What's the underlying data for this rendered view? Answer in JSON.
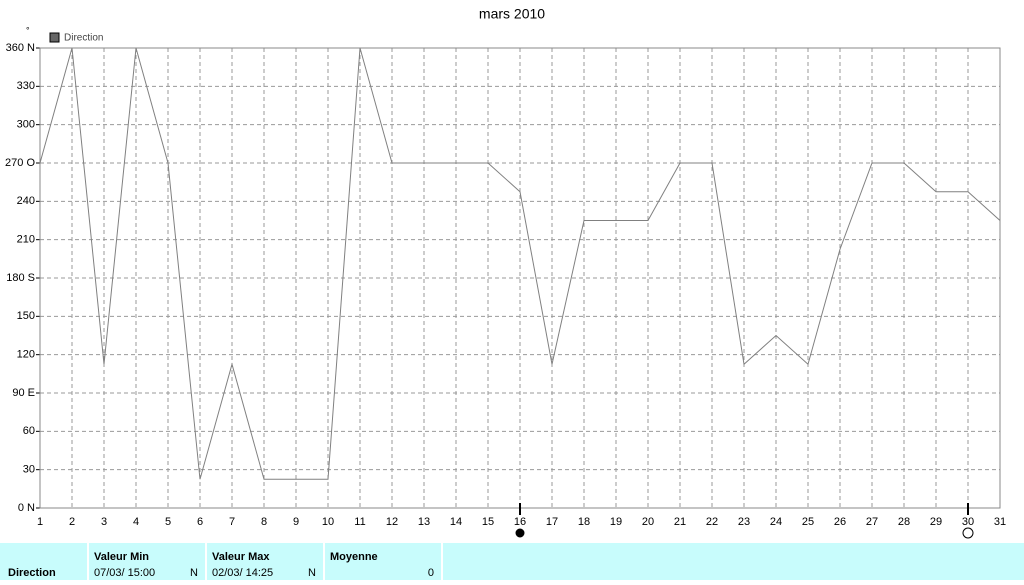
{
  "chart_data": {
    "type": "line",
    "title": "mars 2010",
    "y_unit": "°",
    "x": [
      1,
      2,
      3,
      4,
      5,
      6,
      7,
      8,
      9,
      10,
      11,
      12,
      13,
      14,
      15,
      16,
      17,
      18,
      19,
      20,
      21,
      22,
      23,
      24,
      25,
      26,
      27,
      28,
      29,
      30,
      31
    ],
    "series": [
      {
        "name": "Direction",
        "color": "#808080",
        "values": [
          270,
          360,
          112.5,
          360,
          270,
          22.5,
          112.5,
          22.5,
          22.5,
          22.5,
          360,
          270,
          270,
          270,
          270,
          247.5,
          112.5,
          225,
          225,
          225,
          270,
          270,
          112.5,
          135,
          112.5,
          202.5,
          270,
          270,
          247.5,
          247.5,
          225
        ]
      }
    ],
    "xlim": [
      1,
      31
    ],
    "xticks": [
      1,
      2,
      3,
      4,
      5,
      6,
      7,
      8,
      9,
      10,
      11,
      12,
      13,
      14,
      15,
      16,
      17,
      18,
      19,
      20,
      21,
      22,
      23,
      24,
      25,
      26,
      27,
      28,
      29,
      30,
      31
    ],
    "ylim": [
      0,
      360
    ],
    "yticks": [
      {
        "value": 0,
        "label": "0 N"
      },
      30,
      60,
      {
        "value": 90,
        "label": "90  E"
      },
      120,
      150,
      {
        "value": 180,
        "label": "180 S"
      },
      210,
      240,
      {
        "value": 270,
        "label": "270 O"
      },
      300,
      330,
      {
        "value": 360,
        "label": "360 N"
      }
    ],
    "grid": true,
    "markers": [
      {
        "x": 16,
        "style": "filled"
      },
      {
        "x": 30,
        "style": "open"
      }
    ]
  },
  "footer": {
    "row_label": "Direction",
    "columns": [
      {
        "header": "Valeur Min",
        "value": "07/03/  15:00",
        "unit": "N"
      },
      {
        "header": "Valeur Max",
        "value": "02/03/  14:25",
        "unit": "N"
      },
      {
        "header": "Moyenne",
        "value": "0"
      }
    ]
  }
}
